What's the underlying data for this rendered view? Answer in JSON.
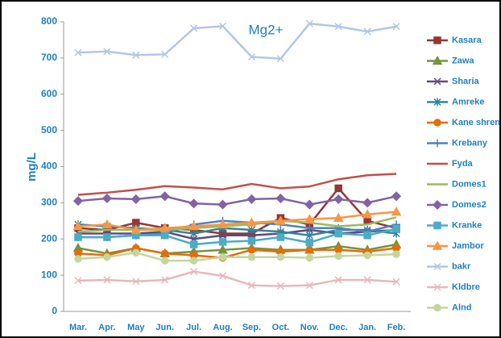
{
  "chart_data": {
    "type": "line",
    "title": "Mg2+",
    "y_label": "mg/L",
    "categories": [
      "Mar.",
      "Apr.",
      "May",
      "Jun.",
      "Jul.",
      "Aug.",
      "Sep.",
      "Oct.",
      "Nov.",
      "Dec.",
      "Jan.",
      "Feb."
    ],
    "ylim": [
      0,
      800
    ],
    "yticks": [
      0,
      100,
      200,
      300,
      400,
      500,
      600,
      700,
      800
    ],
    "grid": false,
    "series": [
      {
        "name": "Kasara",
        "color": "#953735",
        "marker": "square",
        "values": [
          230,
          225,
          245,
          230,
          225,
          215,
          215,
          258,
          240,
          340,
          250,
          230
        ]
      },
      {
        "name": "Zawa",
        "color": "#77933c",
        "marker": "triangle",
        "values": [
          175,
          160,
          175,
          160,
          165,
          170,
          175,
          170,
          170,
          180,
          170,
          185
        ]
      },
      {
        "name": "Sharia",
        "color": "#604a7b",
        "marker": "x",
        "values": [
          215,
          215,
          215,
          220,
          200,
          210,
          210,
          215,
          225,
          215,
          220,
          225
        ]
      },
      {
        "name": "Amreke",
        "color": "#31859c",
        "marker": "asterisk",
        "values": [
          240,
          235,
          230,
          225,
          215,
          230,
          225,
          220,
          210,
          225,
          225,
          215
        ]
      },
      {
        "name": "Kane shren",
        "color": "#e46c0a",
        "marker": "circle",
        "values": [
          160,
          155,
          175,
          160,
          155,
          148,
          170,
          165,
          170,
          170,
          165,
          175
        ]
      },
      {
        "name": "Krebany",
        "color": "#4f81bd",
        "marker": "plus",
        "values": [
          205,
          205,
          210,
          215,
          240,
          250,
          245,
          240,
          230,
          230,
          220,
          240
        ]
      },
      {
        "name": "Fyda",
        "color": "#c0504d",
        "marker": "none",
        "values": [
          322,
          328,
          336,
          346,
          342,
          337,
          352,
          340,
          345,
          365,
          376,
          380
        ]
      },
      {
        "name": "Domes1",
        "color": "#9bbb59",
        "marker": "none",
        "values": [
          220,
          225,
          225,
          225,
          230,
          235,
          240,
          250,
          245,
          235,
          240,
          260
        ]
      },
      {
        "name": "Domes2",
        "color": "#8064a2",
        "marker": "diamond",
        "values": [
          305,
          312,
          310,
          318,
          298,
          295,
          310,
          312,
          295,
          310,
          300,
          318
        ]
      },
      {
        "name": "Kranke",
        "color": "#4bacc6",
        "marker": "square",
        "values": [
          205,
          205,
          210,
          210,
          185,
          192,
          195,
          205,
          190,
          215,
          210,
          228
        ]
      },
      {
        "name": "Jambor",
        "color": "#f79646",
        "marker": "triangle",
        "values": [
          235,
          240,
          225,
          230,
          235,
          240,
          245,
          250,
          255,
          258,
          268,
          275
        ]
      },
      {
        "name": "bakr",
        "color": "#b3c6e7",
        "marker": "x",
        "values": [
          715,
          718,
          708,
          710,
          782,
          788,
          703,
          698,
          795,
          787,
          773,
          787
        ]
      },
      {
        "name": "Kldbre",
        "color": "#e6b9b8",
        "marker": "x",
        "values": [
          85,
          87,
          83,
          87,
          110,
          98,
          72,
          70,
          72,
          87,
          87,
          82
        ]
      },
      {
        "name": "Alnd",
        "color": "#c3d69b",
        "marker": "circle",
        "values": [
          145,
          150,
          162,
          140,
          140,
          150,
          150,
          150,
          148,
          153,
          155,
          158
        ]
      }
    ]
  }
}
